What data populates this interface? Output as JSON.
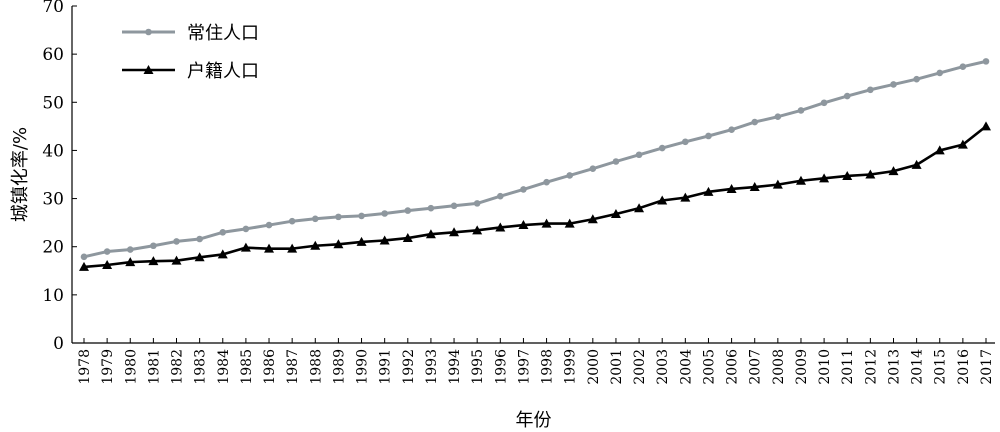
{
  "chart_data": {
    "type": "line",
    "xlabel": "年份",
    "ylabel": "城镇化率/%",
    "ylim": [
      0,
      70
    ],
    "yticks": [
      0,
      10,
      20,
      30,
      40,
      50,
      60,
      70
    ],
    "grid": false,
    "legend_position": "top-left",
    "x": [
      "1978",
      "1979",
      "1980",
      "1981",
      "1982",
      "1983",
      "1984",
      "1985",
      "1986",
      "1987",
      "1988",
      "1989",
      "1990",
      "1991",
      "1992",
      "1993",
      "1994",
      "1995",
      "1996",
      "1997",
      "1998",
      "1999",
      "2000",
      "2001",
      "2002",
      "2003",
      "2004",
      "2005",
      "2006",
      "2007",
      "2008",
      "2009",
      "2010",
      "2011",
      "2012",
      "2013",
      "2014",
      "2015",
      "2016",
      "2017"
    ],
    "series": [
      {
        "name": "常住人口",
        "color": "#8e979e",
        "marker": "circle",
        "values": [
          17.9,
          19.0,
          19.4,
          20.2,
          21.1,
          21.6,
          23.0,
          23.7,
          24.5,
          25.3,
          25.8,
          26.2,
          26.4,
          26.9,
          27.5,
          28.0,
          28.5,
          29.0,
          30.5,
          31.9,
          33.4,
          34.8,
          36.2,
          37.7,
          39.1,
          40.5,
          41.8,
          43.0,
          44.3,
          45.9,
          47.0,
          48.3,
          49.9,
          51.3,
          52.6,
          53.7,
          54.8,
          56.1,
          57.4,
          58.5
        ]
      },
      {
        "name": "户籍人口",
        "color": "#000000",
        "marker": "triangle",
        "values": [
          15.8,
          16.2,
          16.8,
          17.0,
          17.1,
          17.8,
          18.4,
          19.8,
          19.6,
          19.6,
          20.2,
          20.5,
          21.0,
          21.3,
          21.8,
          22.6,
          23.0,
          23.4,
          24.0,
          24.5,
          24.8,
          24.8,
          25.7,
          26.8,
          28.0,
          29.6,
          30.2,
          31.4,
          32.0,
          32.4,
          32.9,
          33.7,
          34.2,
          34.7,
          35.0,
          35.7,
          37.0,
          40.0,
          41.2,
          45.0
        ]
      }
    ]
  }
}
